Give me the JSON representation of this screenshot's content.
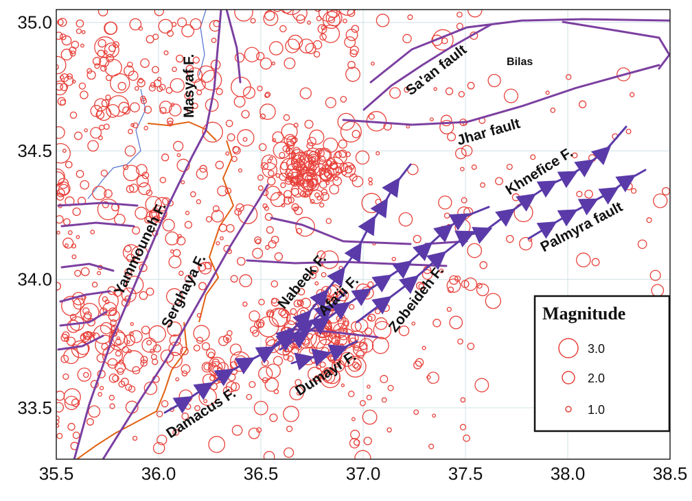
{
  "chart_data": {
    "type": "map",
    "title": "",
    "x_axis": {
      "range": [
        35.5,
        38.5
      ],
      "ticks": [
        "35.5",
        "36.0",
        "36.5",
        "37.0",
        "37.5",
        "38.0",
        "38.5"
      ]
    },
    "y_axis": {
      "range": [
        33.3,
        35.05
      ],
      "ticks": [
        "35.0",
        "34.5",
        "34.0",
        "33.5"
      ]
    },
    "places": [
      {
        "name": "Bilas",
        "lon": 37.85,
        "lat": 34.86
      }
    ],
    "faults": [
      {
        "name": "Masyaf F."
      },
      {
        "name": "Sa'an fault"
      },
      {
        "name": "Jhar fault"
      },
      {
        "name": "Yammouneh F."
      },
      {
        "name": "Serghaya F."
      },
      {
        "name": "Nabeek F."
      },
      {
        "name": "Afa'ii F."
      },
      {
        "name": "Zobeideh F."
      },
      {
        "name": "Khnefice F."
      },
      {
        "name": "Palmyra fault"
      },
      {
        "name": "Damacus F."
      },
      {
        "name": "Dumayr F."
      }
    ],
    "legend": {
      "title": "Magnitude",
      "entries": [
        {
          "label": "3.0",
          "magnitude": 3.0
        },
        {
          "label": "2.0",
          "magnitude": 2.0
        },
        {
          "label": "1.0",
          "magnitude": 1.0
        }
      ]
    },
    "colors": {
      "events": "#e8413a",
      "faults": "#7b3fa0",
      "thrust": "#5a3aa8",
      "border": "#e06010",
      "river": "#5a7ad0"
    },
    "seismicity_clusters": [
      {
        "lon": 36.72,
        "lat": 34.42,
        "count": 150,
        "spread_deg": 0.09
      },
      {
        "lon": 36.8,
        "lat": 33.8,
        "count": 140,
        "spread_deg": 0.13
      },
      {
        "lon": 35.78,
        "lat": 33.78,
        "count": 70,
        "spread_deg": 0.12
      },
      {
        "lon": 35.85,
        "lat": 34.8,
        "count": 60,
        "spread_deg": 0.14
      },
      {
        "lon": 36.3,
        "lat": 33.64,
        "count": 30,
        "spread_deg": 0.08
      },
      {
        "lon": 36.75,
        "lat": 35.02,
        "count": 35,
        "spread_deg": 0.1
      },
      {
        "lon": 36.15,
        "lat": 34.2,
        "count": 45,
        "spread_deg": 0.18
      }
    ],
    "background_events": 420
  }
}
